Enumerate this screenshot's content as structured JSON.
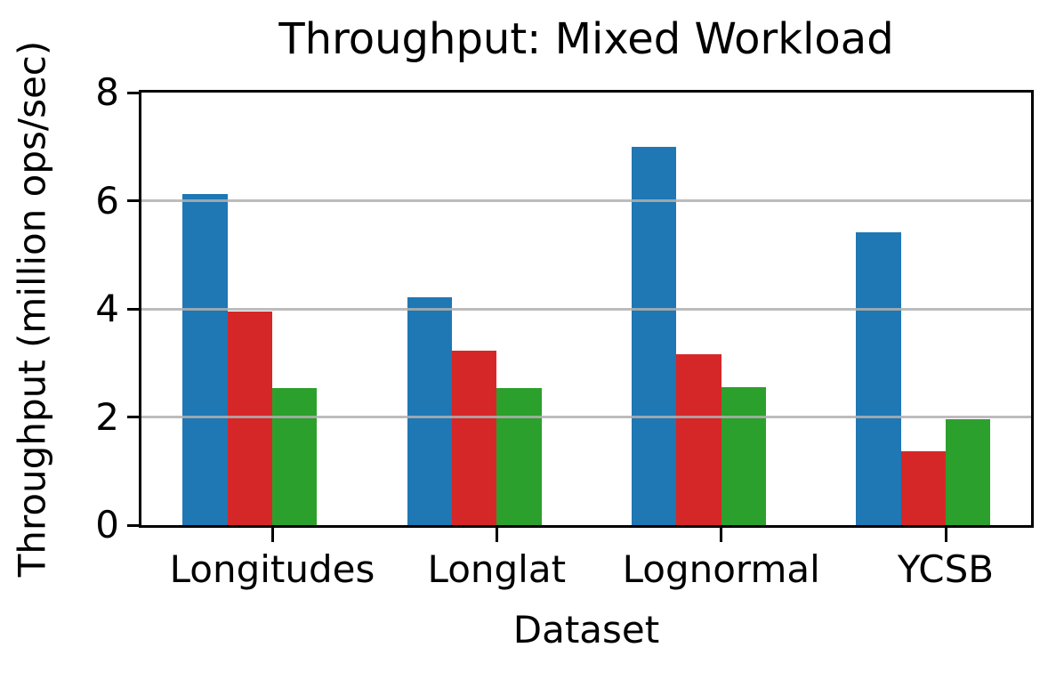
{
  "chart_data": {
    "type": "bar",
    "title": "Throughput: Mixed Workload",
    "xlabel": "Dataset",
    "ylabel": "Throughput (million ops/sec)",
    "categories": [
      "Longitudes",
      "Longlat",
      "Lognormal",
      "YCSB"
    ],
    "series": [
      {
        "name": "blue",
        "color": "#1f77b4",
        "values": [
          6.13,
          4.21,
          7.0,
          5.42
        ]
      },
      {
        "name": "red",
        "color": "#d62728",
        "values": [
          3.95,
          3.22,
          3.16,
          1.37
        ]
      },
      {
        "name": "green",
        "color": "#2ca02c",
        "values": [
          2.53,
          2.53,
          2.55,
          1.96
        ]
      }
    ],
    "ylim": [
      0,
      8
    ],
    "yticks": [
      0,
      2,
      4,
      6,
      8
    ],
    "grid": true,
    "grid_color": "#b0b0b0",
    "legend": "none",
    "background": "#ffffff",
    "text_color": "#000000"
  }
}
